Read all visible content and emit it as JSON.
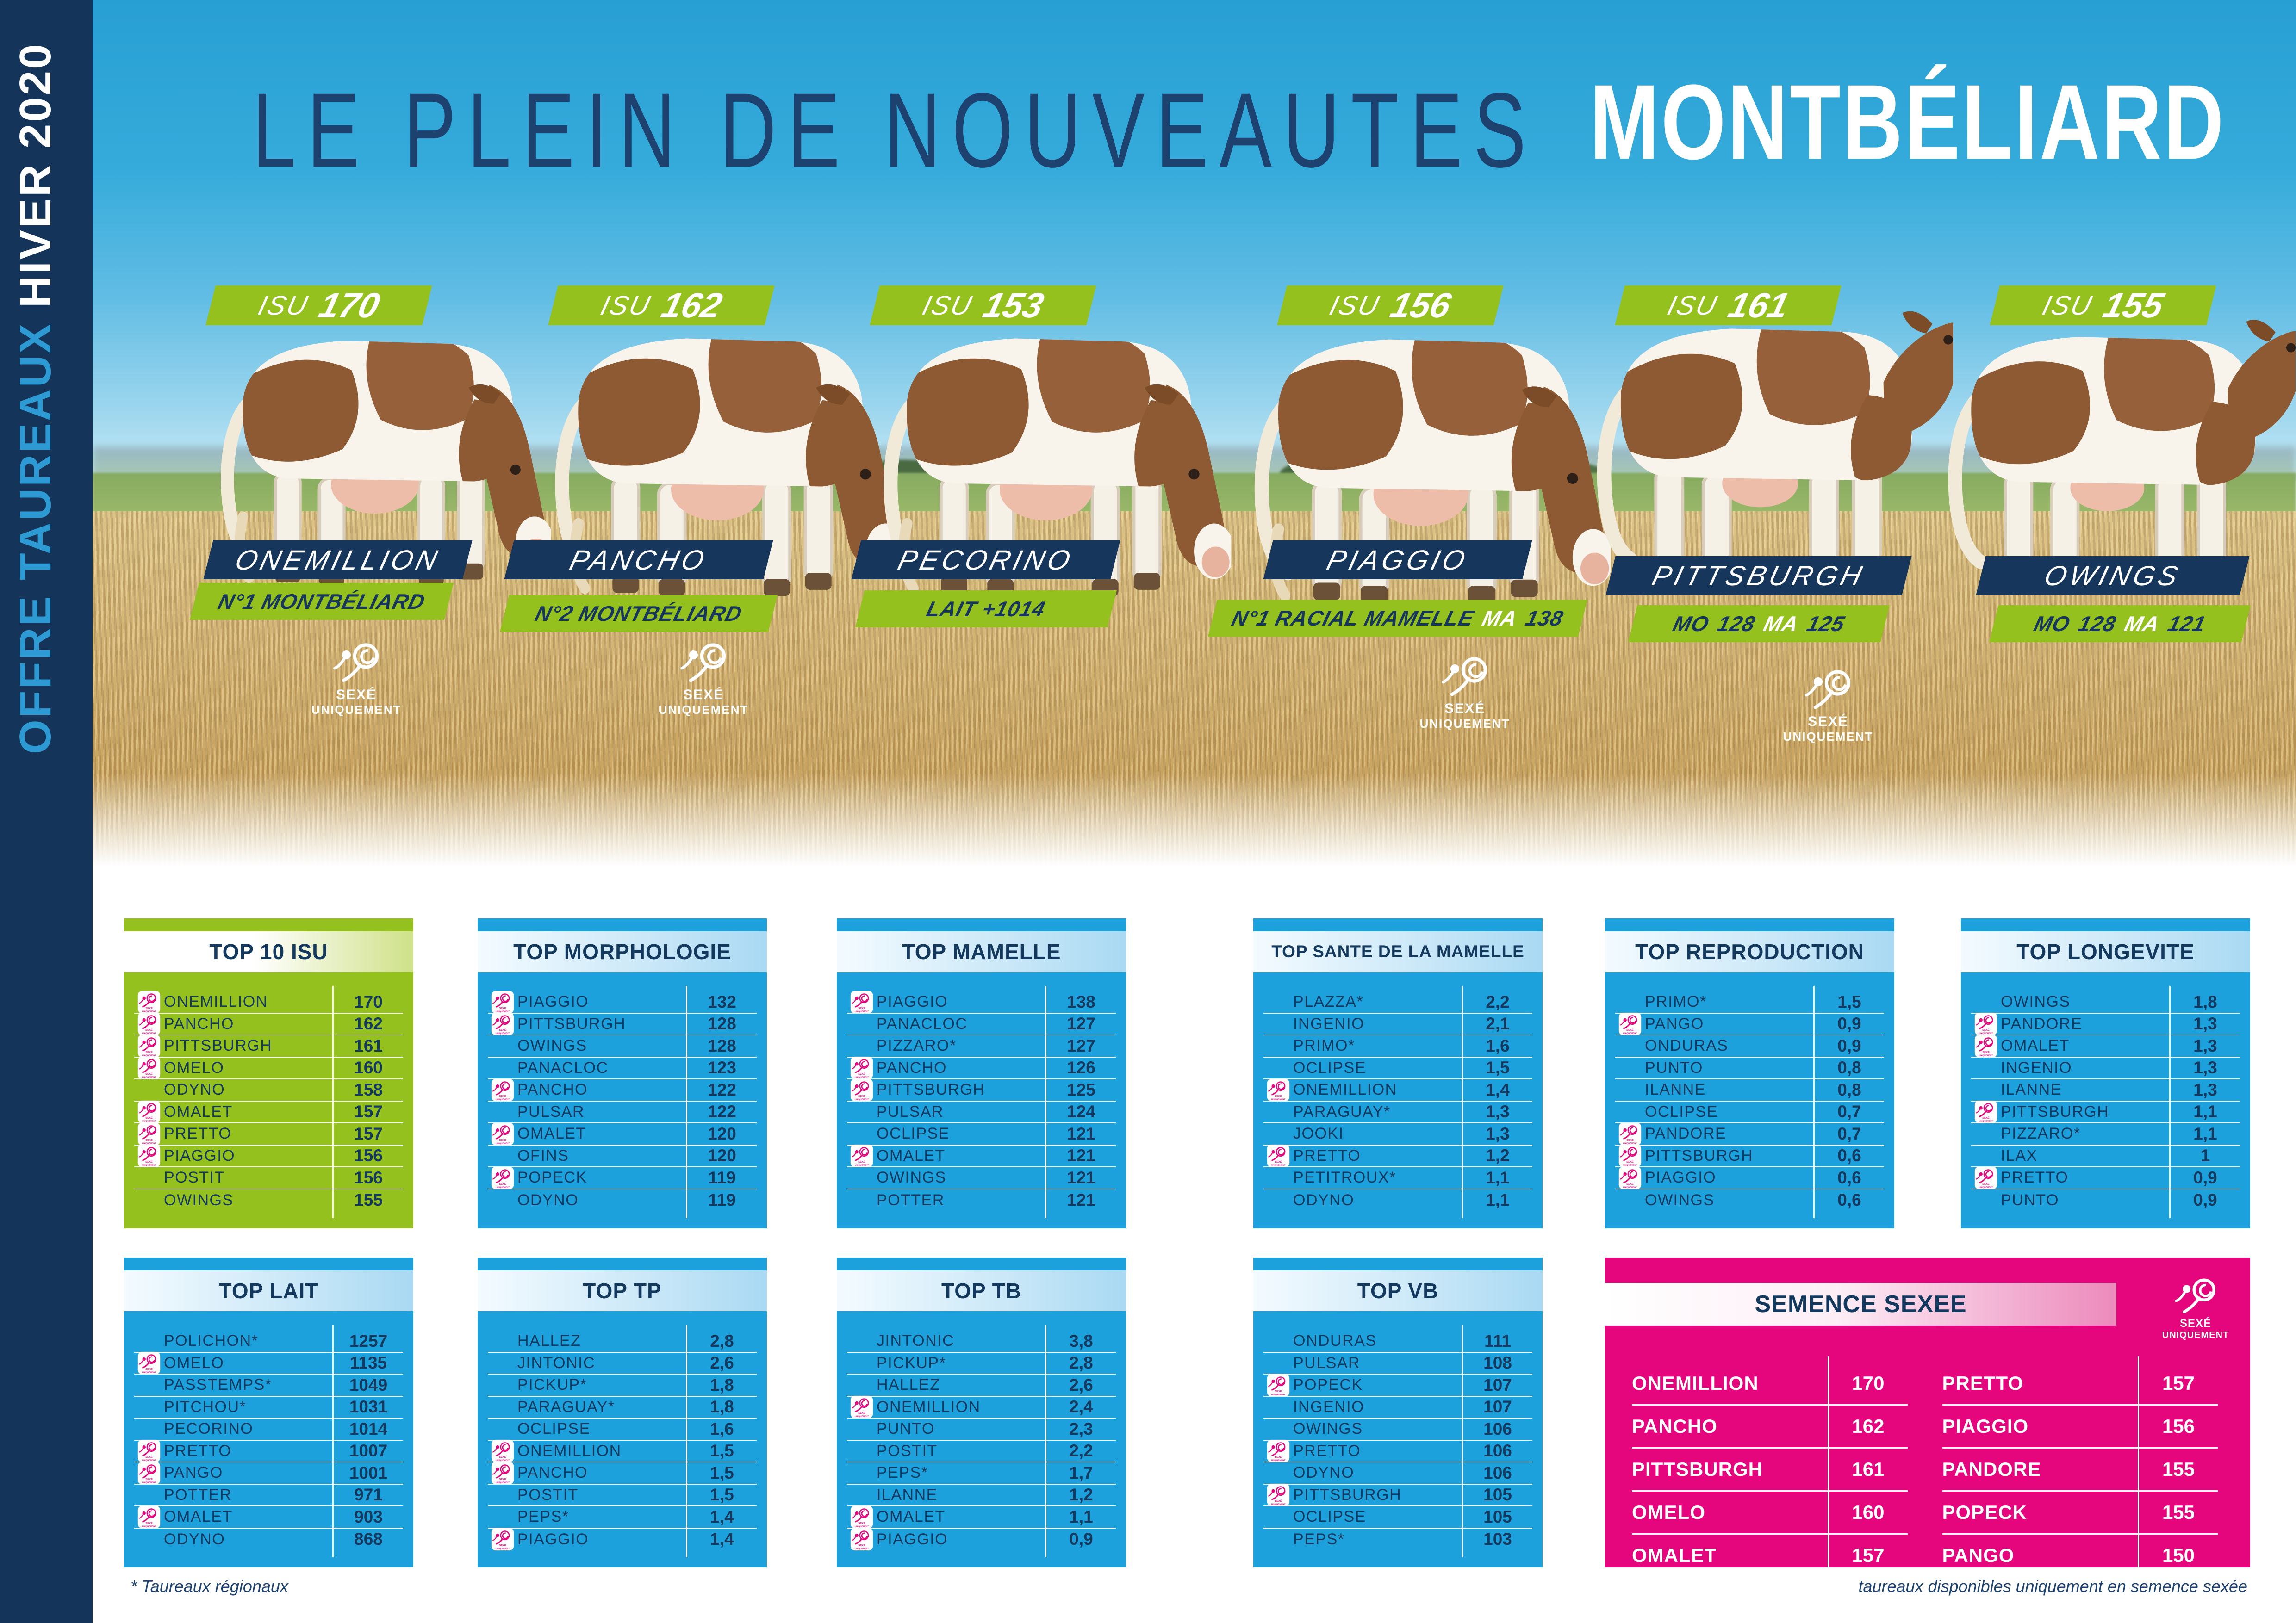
{
  "sidebar": {
    "offer": "OFFRE TAUREAUX ",
    "season": "HIVER 2020"
  },
  "header": {
    "title": "LE PLEIN DE NOUVEAUTES",
    "breed": "MONTBÉLIARD"
  },
  "sexed_badge": {
    "line1": "SEXÉ",
    "line2": "UNIQUEMENT"
  },
  "bulls": [
    {
      "isu_label": "ISU",
      "isu_value": "170",
      "name": "ONEMILLION",
      "sub": [
        "N°1 MONTBÉLIARD"
      ],
      "sexed_only": true
    },
    {
      "isu_label": "ISU",
      "isu_value": "162",
      "name": "PANCHO",
      "sub": [
        "N°2 MONTBÉLIARD"
      ],
      "sexed_only": true
    },
    {
      "isu_label": "ISU",
      "isu_value": "153",
      "name": "PECORINO",
      "sub": [
        "LAIT +1014"
      ],
      "sexed_only": false
    },
    {
      "isu_label": "ISU",
      "isu_value": "156",
      "name": "PIAGGIO",
      "sub": [
        "N°1 RACIAL MAMELLE",
        "MA",
        "138"
      ],
      "sexed_only": true
    },
    {
      "isu_label": "ISU",
      "isu_value": "161",
      "name": "PITTSBURGH",
      "sub": [
        "MO",
        "128",
        "MA",
        "125"
      ],
      "sexed_only": true
    },
    {
      "isu_label": "ISU",
      "isu_value": "155",
      "name": "OWINGS",
      "sub": [
        "MO",
        "128",
        "MA",
        "121"
      ],
      "sexed_only": false
    }
  ],
  "tables": [
    {
      "title": "TOP 10 ISU",
      "theme": "green",
      "rows": [
        {
          "name": "ONEMILLION",
          "value": "170",
          "sexed": true
        },
        {
          "name": "PANCHO",
          "value": "162",
          "sexed": true
        },
        {
          "name": "PITTSBURGH",
          "value": "161",
          "sexed": true
        },
        {
          "name": "OMELO",
          "value": "160",
          "sexed": true
        },
        {
          "name": "ODYNO",
          "value": "158",
          "sexed": false
        },
        {
          "name": "OMALET",
          "value": "157",
          "sexed": true
        },
        {
          "name": "PRETTO",
          "value": "157",
          "sexed": true
        },
        {
          "name": "PIAGGIO",
          "value": "156",
          "sexed": true
        },
        {
          "name": "POSTIT",
          "value": "156",
          "sexed": false
        },
        {
          "name": "OWINGS",
          "value": "155",
          "sexed": false
        }
      ]
    },
    {
      "title": "TOP MORPHOLOGIE",
      "theme": "blue",
      "rows": [
        {
          "name": "PIAGGIO",
          "value": "132",
          "sexed": true
        },
        {
          "name": "PITTSBURGH",
          "value": "128",
          "sexed": true
        },
        {
          "name": "OWINGS",
          "value": "128",
          "sexed": false
        },
        {
          "name": "PANACLOC",
          "value": "123",
          "sexed": false
        },
        {
          "name": "PANCHO",
          "value": "122",
          "sexed": true
        },
        {
          "name": "PULSAR",
          "value": "122",
          "sexed": false
        },
        {
          "name": "OMALET",
          "value": "120",
          "sexed": true
        },
        {
          "name": "OFINS",
          "value": "120",
          "sexed": false
        },
        {
          "name": "POPECK",
          "value": "119",
          "sexed": true
        },
        {
          "name": "ODYNO",
          "value": "119",
          "sexed": false
        }
      ]
    },
    {
      "title": "TOP MAMELLE",
      "theme": "blue",
      "rows": [
        {
          "name": "PIAGGIO",
          "value": "138",
          "sexed": true
        },
        {
          "name": "PANACLOC",
          "value": "127",
          "sexed": false
        },
        {
          "name": "PIZZARO*",
          "value": "127",
          "sexed": false
        },
        {
          "name": "PANCHO",
          "value": "126",
          "sexed": true
        },
        {
          "name": "PITTSBURGH",
          "value": "125",
          "sexed": true
        },
        {
          "name": "PULSAR",
          "value": "124",
          "sexed": false
        },
        {
          "name": "OCLIPSE",
          "value": "121",
          "sexed": false
        },
        {
          "name": "OMALET",
          "value": "121",
          "sexed": true
        },
        {
          "name": "OWINGS",
          "value": "121",
          "sexed": false
        },
        {
          "name": "POTTER",
          "value": "121",
          "sexed": false
        }
      ]
    },
    {
      "title": "TOP SANTE DE LA MAMELLE",
      "theme": "blue",
      "rows": [
        {
          "name": "PLAZZA*",
          "value": "2,2",
          "sexed": false
        },
        {
          "name": "INGENIO",
          "value": "2,1",
          "sexed": false
        },
        {
          "name": "PRIMO*",
          "value": "1,6",
          "sexed": false
        },
        {
          "name": "OCLIPSE",
          "value": "1,5",
          "sexed": false
        },
        {
          "name": "ONEMILLION",
          "value": "1,4",
          "sexed": true
        },
        {
          "name": "PARAGUAY*",
          "value": "1,3",
          "sexed": false
        },
        {
          "name": "JOOKI",
          "value": "1,3",
          "sexed": false
        },
        {
          "name": "PRETTO",
          "value": "1,2",
          "sexed": true
        },
        {
          "name": "PETITROUX*",
          "value": "1,1",
          "sexed": false
        },
        {
          "name": "ODYNO",
          "value": "1,1",
          "sexed": false
        }
      ]
    },
    {
      "title": "TOP REPRODUCTION",
      "theme": "blue",
      "rows": [
        {
          "name": "PRIMO*",
          "value": "1,5",
          "sexed": false
        },
        {
          "name": "PANGO",
          "value": "0,9",
          "sexed": true
        },
        {
          "name": "ONDURAS",
          "value": "0,9",
          "sexed": false
        },
        {
          "name": "PUNTO",
          "value": "0,8",
          "sexed": false
        },
        {
          "name": "ILANNE",
          "value": "0,8",
          "sexed": false
        },
        {
          "name": "OCLIPSE",
          "value": "0,7",
          "sexed": false
        },
        {
          "name": "PANDORE",
          "value": "0,7",
          "sexed": true
        },
        {
          "name": "PITTSBURGH",
          "value": "0,6",
          "sexed": true
        },
        {
          "name": "PIAGGIO",
          "value": "0,6",
          "sexed": true
        },
        {
          "name": "OWINGS",
          "value": "0,6",
          "sexed": false
        }
      ]
    },
    {
      "title": "TOP LONGEVITE",
      "theme": "blue",
      "rows": [
        {
          "name": "OWINGS",
          "value": "1,8",
          "sexed": false
        },
        {
          "name": "PANDORE",
          "value": "1,3",
          "sexed": true
        },
        {
          "name": "OMALET",
          "value": "1,3",
          "sexed": true
        },
        {
          "name": "INGENIO",
          "value": "1,3",
          "sexed": false
        },
        {
          "name": "ILANNE",
          "value": "1,3",
          "sexed": false
        },
        {
          "name": "PITTSBURGH",
          "value": "1,1",
          "sexed": true
        },
        {
          "name": "PIZZARO*",
          "value": "1,1",
          "sexed": false
        },
        {
          "name": "ILAX",
          "value": "1",
          "sexed": false
        },
        {
          "name": "PRETTO",
          "value": "0,9",
          "sexed": true
        },
        {
          "name": "PUNTO",
          "value": "0,9",
          "sexed": false
        }
      ]
    },
    {
      "title": "TOP LAIT",
      "theme": "blue",
      "rows": [
        {
          "name": "POLICHON*",
          "value": "1257",
          "sexed": false
        },
        {
          "name": "OMELO",
          "value": "1135",
          "sexed": true
        },
        {
          "name": "PASSTEMPS*",
          "value": "1049",
          "sexed": false
        },
        {
          "name": "PITCHOU*",
          "value": "1031",
          "sexed": false
        },
        {
          "name": "PECORINO",
          "value": "1014",
          "sexed": false
        },
        {
          "name": "PRETTO",
          "value": "1007",
          "sexed": true
        },
        {
          "name": "PANGO",
          "value": "1001",
          "sexed": true
        },
        {
          "name": "POTTER",
          "value": "971",
          "sexed": false
        },
        {
          "name": "OMALET",
          "value": "903",
          "sexed": true
        },
        {
          "name": "ODYNO",
          "value": "868",
          "sexed": false
        }
      ]
    },
    {
      "title": "TOP TP",
      "theme": "blue",
      "rows": [
        {
          "name": "HALLEZ",
          "value": "2,8",
          "sexed": false
        },
        {
          "name": "JINTONIC",
          "value": "2,6",
          "sexed": false
        },
        {
          "name": "PICKUP*",
          "value": "1,8",
          "sexed": false
        },
        {
          "name": "PARAGUAY*",
          "value": "1,8",
          "sexed": false
        },
        {
          "name": "OCLIPSE",
          "value": "1,6",
          "sexed": false
        },
        {
          "name": "ONEMILLION",
          "value": "1,5",
          "sexed": true
        },
        {
          "name": "PANCHO",
          "value": "1,5",
          "sexed": true
        },
        {
          "name": "POSTIT",
          "value": "1,5",
          "sexed": false
        },
        {
          "name": "PEPS*",
          "value": "1,4",
          "sexed": false
        },
        {
          "name": "PIAGGIO",
          "value": "1,4",
          "sexed": true
        }
      ]
    },
    {
      "title": "TOP TB",
      "theme": "blue",
      "rows": [
        {
          "name": "JINTONIC",
          "value": "3,8",
          "sexed": false
        },
        {
          "name": "PICKUP*",
          "value": "2,8",
          "sexed": false
        },
        {
          "name": "HALLEZ",
          "value": "2,6",
          "sexed": false
        },
        {
          "name": "ONEMILLION",
          "value": "2,4",
          "sexed": true
        },
        {
          "name": "PUNTO",
          "value": "2,3",
          "sexed": false
        },
        {
          "name": "POSTIT",
          "value": "2,2",
          "sexed": false
        },
        {
          "name": "PEPS*",
          "value": "1,7",
          "sexed": false
        },
        {
          "name": "ILANNE",
          "value": "1,2",
          "sexed": false
        },
        {
          "name": "OMALET",
          "value": "1,1",
          "sexed": true
        },
        {
          "name": "PIAGGIO",
          "value": "0,9",
          "sexed": true
        }
      ]
    },
    {
      "title": "TOP VB",
      "theme": "blue",
      "rows": [
        {
          "name": "ONDURAS",
          "value": "111",
          "sexed": false
        },
        {
          "name": "PULSAR",
          "value": "108",
          "sexed": false
        },
        {
          "name": "POPECK",
          "value": "107",
          "sexed": true
        },
        {
          "name": "INGENIO",
          "value": "107",
          "sexed": false
        },
        {
          "name": "OWINGS",
          "value": "106",
          "sexed": false
        },
        {
          "name": "PRETTO",
          "value": "106",
          "sexed": true
        },
        {
          "name": "ODYNO",
          "value": "106",
          "sexed": false
        },
        {
          "name": "PITTSBURGH",
          "value": "105",
          "sexed": true
        },
        {
          "name": "OCLIPSE",
          "value": "105",
          "sexed": false
        },
        {
          "name": "PEPS*",
          "value": "103",
          "sexed": false
        }
      ]
    }
  ],
  "semence": {
    "title": "SEMENCE SEXEE",
    "left": [
      {
        "name": "ONEMILLION",
        "value": "170"
      },
      {
        "name": "PANCHO",
        "value": "162"
      },
      {
        "name": "PITTSBURGH",
        "value": "161"
      },
      {
        "name": "OMELO",
        "value": "160"
      },
      {
        "name": "OMALET",
        "value": "157"
      }
    ],
    "right": [
      {
        "name": "PRETTO",
        "value": "157"
      },
      {
        "name": "PIAGGIO",
        "value": "156"
      },
      {
        "name": "PANDORE",
        "value": "155"
      },
      {
        "name": "POPECK",
        "value": "155"
      },
      {
        "name": "PANGO",
        "value": "150"
      }
    ]
  },
  "footer": {
    "left": "* Taureaux régionaux",
    "right": "taureaux disponibles uniquement en semence sexée"
  },
  "colors": {
    "green": "#95c11f",
    "blue": "#1da1dc",
    "pink": "#e5067e",
    "navy": "#16365c",
    "sidebar_navy": "#14345a",
    "sidebar_blue": "#2d9ad3"
  }
}
